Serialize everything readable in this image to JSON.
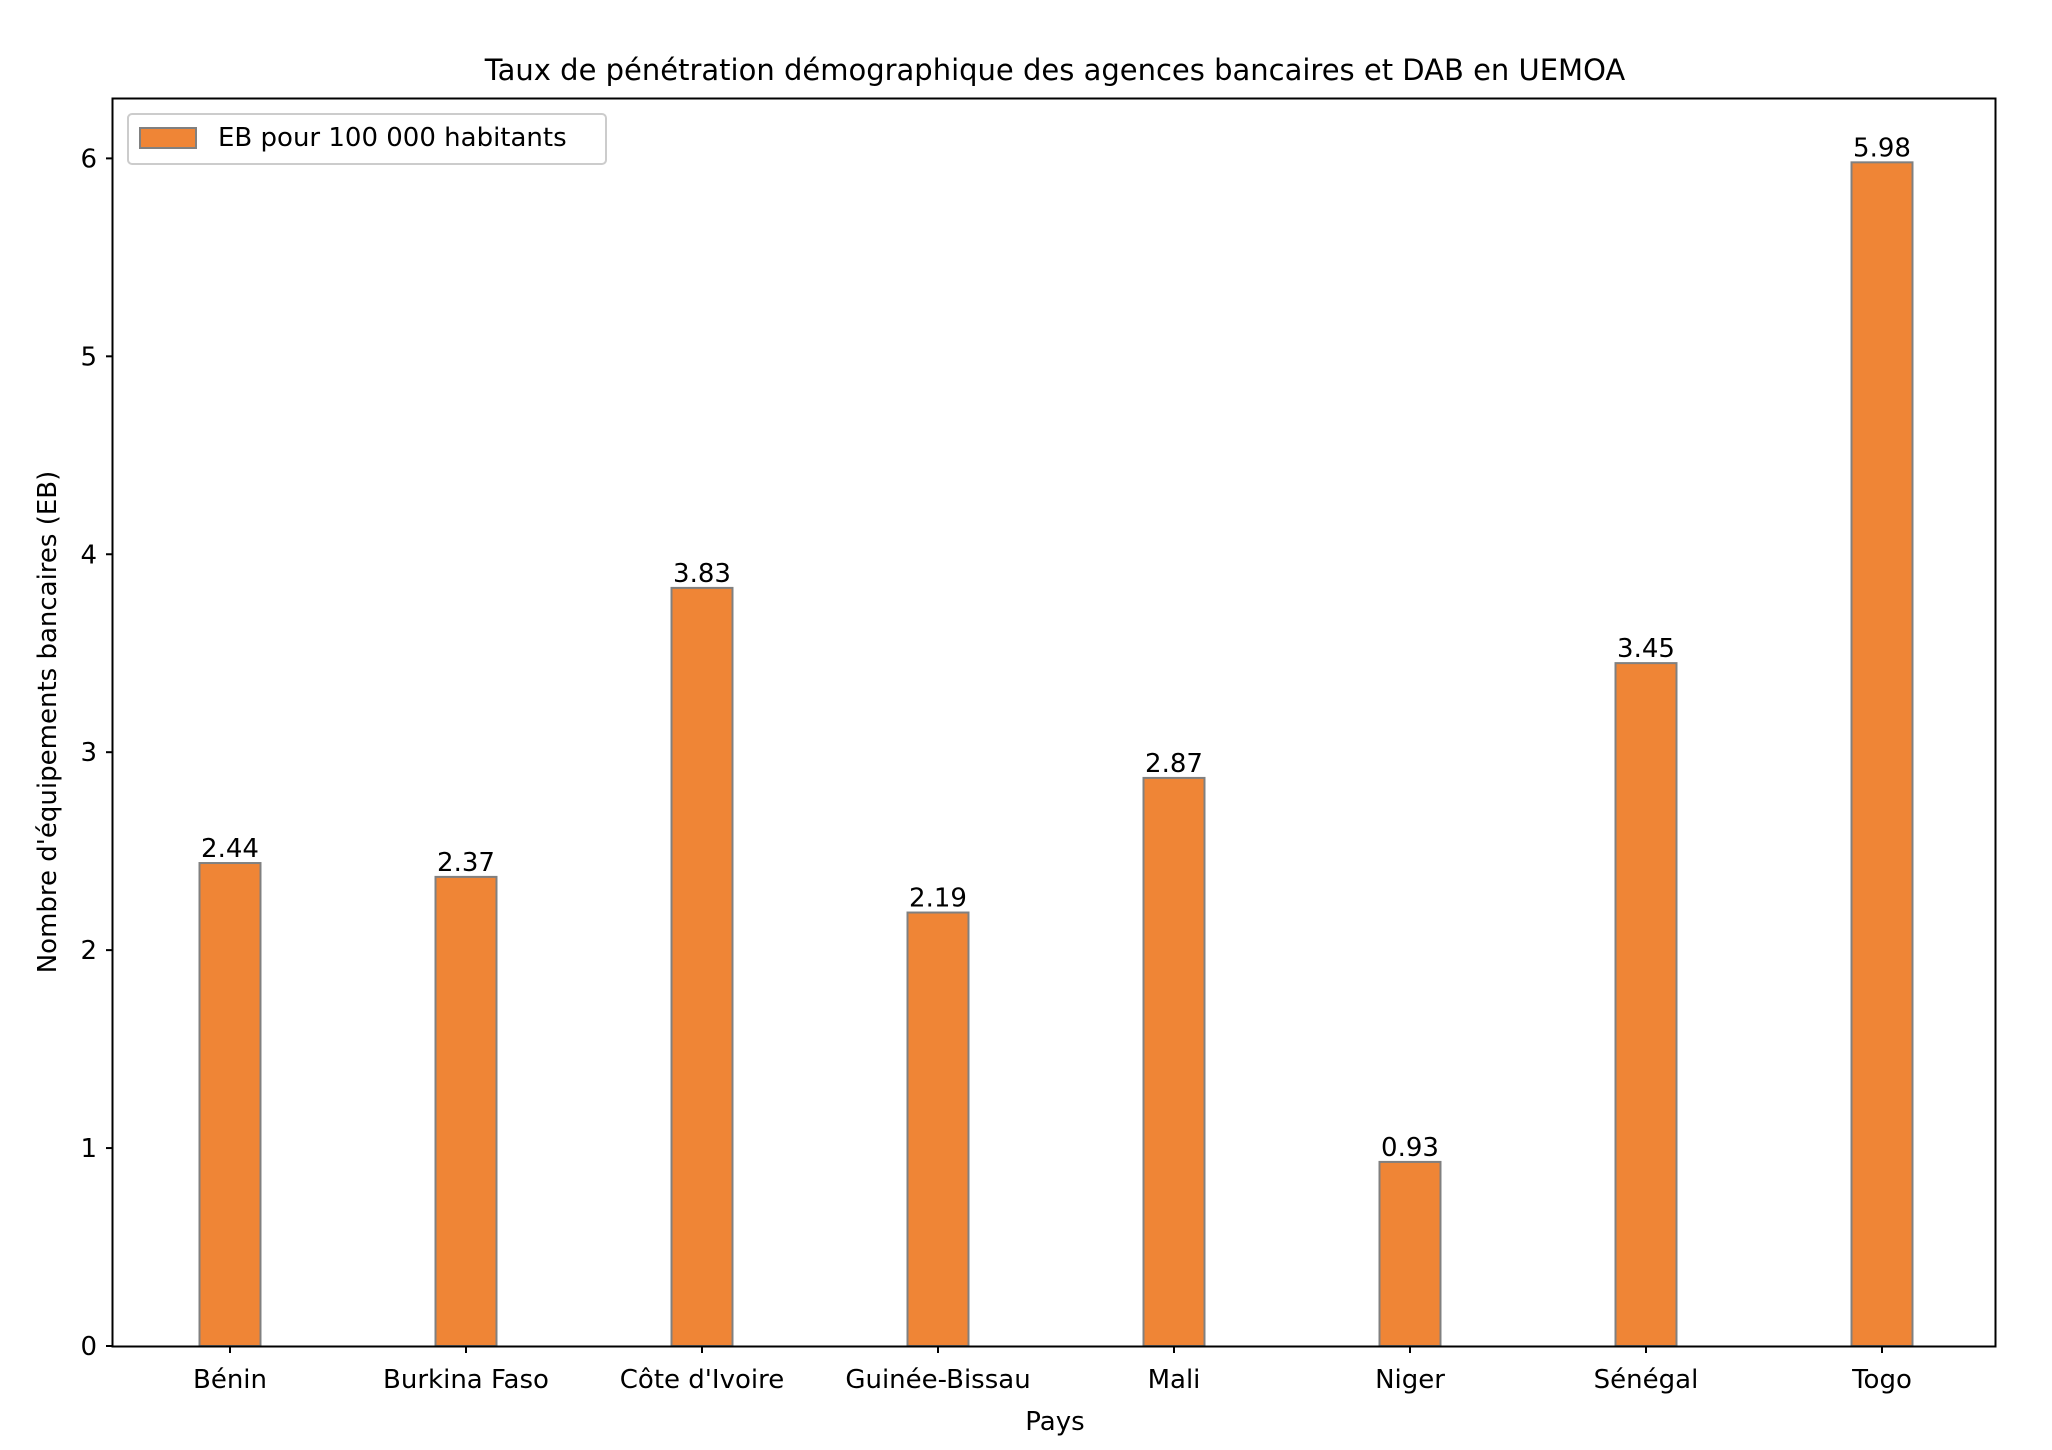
{
  "chart_data": {
    "type": "bar",
    "title": "Taux de pénétration démographique des agences bancaires et DAB en UEMOA",
    "xlabel": "Pays",
    "ylabel": "Nombre d'équipements bancaires (EB)",
    "categories": [
      "Bénin",
      "Burkina Faso",
      "Côte d'Ivoire",
      "Guinée-Bissau",
      "Mali",
      "Niger",
      "Sénégal",
      "Togo"
    ],
    "series": [
      {
        "name": "EB pour 100 000 habitants",
        "values": [
          2.44,
          2.37,
          3.83,
          2.19,
          2.87,
          0.93,
          3.45,
          5.98
        ],
        "labels": [
          "2.44",
          "2.37",
          "3.83",
          "2.19",
          "2.87",
          "0.93",
          "3.45",
          "5.98"
        ],
        "color": "#ef8536",
        "edge_color": "#808080"
      }
    ],
    "ylim": [
      0,
      6.3
    ],
    "yticks": [
      "0",
      "1",
      "2",
      "3",
      "4",
      "5",
      "6"
    ],
    "grid": false,
    "legend": "top-left"
  }
}
